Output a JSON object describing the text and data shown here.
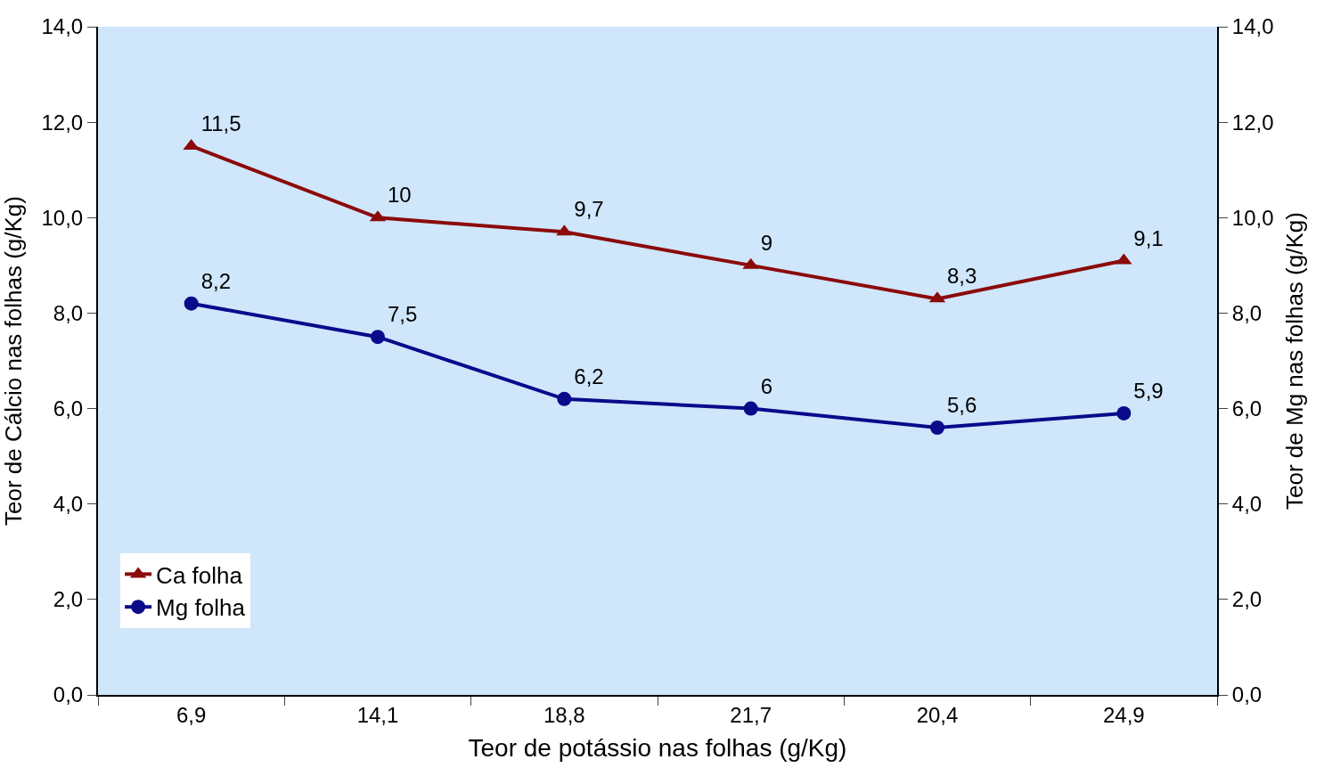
{
  "chart_data": {
    "type": "line",
    "xlabel": "Teor de potássio nas folhas (g/Kg)",
    "ylabel": "Teor de Cálcio nas folhas (g/Kg)",
    "y2label": "Teor de Mg nas folhas (g/Kg)",
    "categories": [
      "6,9",
      "14,1",
      "18,8",
      "21,7",
      "20,4",
      "24,9"
    ],
    "series": [
      {
        "name": "Ca folha",
        "color": "#8b0a0a",
        "marker": "triangle",
        "values": [
          11.5,
          10,
          9.7,
          9,
          8.3,
          9.1
        ],
        "value_labels": [
          "11,5",
          "10",
          "9,7",
          "9",
          "8,3",
          "9,1"
        ]
      },
      {
        "name": "Mg folha",
        "color": "#0a0a8b",
        "marker": "circle",
        "axis": "y2",
        "values": [
          8.2,
          7.5,
          6.2,
          6,
          5.6,
          5.9
        ],
        "value_labels": [
          "8,2",
          "7,5",
          "6,2",
          "6",
          "5,6",
          "5,9"
        ]
      }
    ],
    "ylim": [
      0,
      14
    ],
    "yticks": [
      {
        "value": 0,
        "label": "0,0"
      },
      {
        "value": 2,
        "label": "2,0"
      },
      {
        "value": 4,
        "label": "4,0"
      },
      {
        "value": 6,
        "label": "6,0"
      },
      {
        "value": 8,
        "label": "8,0"
      },
      {
        "value": 10,
        "label": "10,0"
      },
      {
        "value": 12,
        "label": "12,0"
      },
      {
        "value": 14,
        "label": "14,0"
      }
    ],
    "y2lim": [
      0,
      14
    ],
    "y2ticks": [
      {
        "value": 0,
        "label": "0,0"
      },
      {
        "value": 2,
        "label": "2,0"
      },
      {
        "value": 4,
        "label": "4,0"
      },
      {
        "value": 6,
        "label": "6,0"
      },
      {
        "value": 8,
        "label": "8,0"
      },
      {
        "value": 10,
        "label": "10,0"
      },
      {
        "value": 12,
        "label": "12,0"
      },
      {
        "value": 14,
        "label": "14,0"
      }
    ],
    "grid": false,
    "legend": "bottom left",
    "line_style": "solid"
  }
}
